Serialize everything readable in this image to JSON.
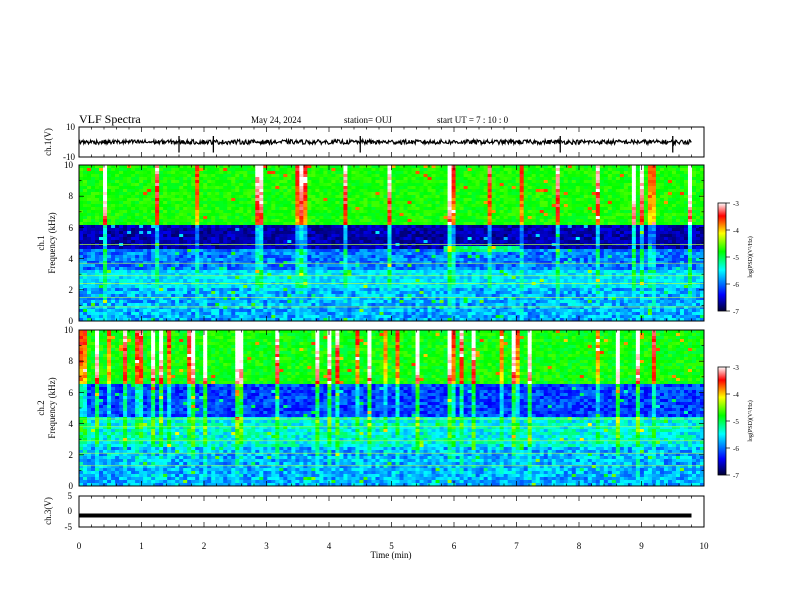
{
  "header": {
    "title": "VLF Spectra",
    "date": "May 24, 2024",
    "station": "station= OUJ",
    "start": "start  UT =   7 : 10 : 0"
  },
  "colors": {
    "background": "#ffffff",
    "axis": "#000000",
    "colormap": [
      "#000033",
      "#0000ff",
      "#00ffff",
      "#00ff00",
      "#ffff00",
      "#ff0000",
      "#ffffff"
    ]
  },
  "chart_data": [
    {
      "id": "ch1-voltage",
      "type": "line",
      "ylabel": "ch.1(V)",
      "ylim": [
        -10,
        10
      ],
      "yticks": [
        "10",
        "-10"
      ],
      "xlim": [
        0,
        10
      ],
      "trace": {
        "baseline": 0,
        "noise": 1.5,
        "spikes_at": [
          1.6,
          2.15,
          4.5,
          7.7,
          9.5
        ]
      }
    },
    {
      "id": "ch1-spectrogram",
      "type": "heatmap",
      "xlabel": "",
      "ylabel": "ch.1\nFrequency (kHz)",
      "ylim": [
        0,
        10
      ],
      "yticks": [
        "0",
        "2",
        "4",
        "6",
        "8",
        "10"
      ],
      "xlim": [
        0,
        10
      ],
      "colorbar": {
        "label": "log(PSD)(V²/Hz)",
        "ticks": [
          "-3",
          "-4",
          "-5",
          "-6",
          "-7"
        ],
        "range": [
          -7,
          -3
        ]
      }
    },
    {
      "id": "ch2-spectrogram",
      "type": "heatmap",
      "xlabel": "",
      "ylabel": "ch.2\nFrequency (kHz)",
      "ylim": [
        0,
        10
      ],
      "yticks": [
        "0",
        "2",
        "4",
        "6",
        "8",
        "10"
      ],
      "xlim": [
        0,
        10
      ],
      "colorbar": {
        "label": "log(PSD)(V²/Hz)",
        "ticks": [
          "-3",
          "-4",
          "-5",
          "-6",
          "-7"
        ],
        "range": [
          -7,
          -3
        ]
      }
    },
    {
      "id": "ch3-voltage",
      "type": "line",
      "xlabel": "Time (min)",
      "ylabel": "ch.3(V)",
      "ylim": [
        -5,
        5
      ],
      "yticks": [
        "5",
        "0",
        "-5"
      ],
      "xlim": [
        0,
        10
      ],
      "xticks": [
        "0",
        "1",
        "2",
        "3",
        "4",
        "5",
        "6",
        "7",
        "8",
        "9",
        "10"
      ],
      "trace": {
        "level": -1.3,
        "end": 9.8
      }
    }
  ]
}
